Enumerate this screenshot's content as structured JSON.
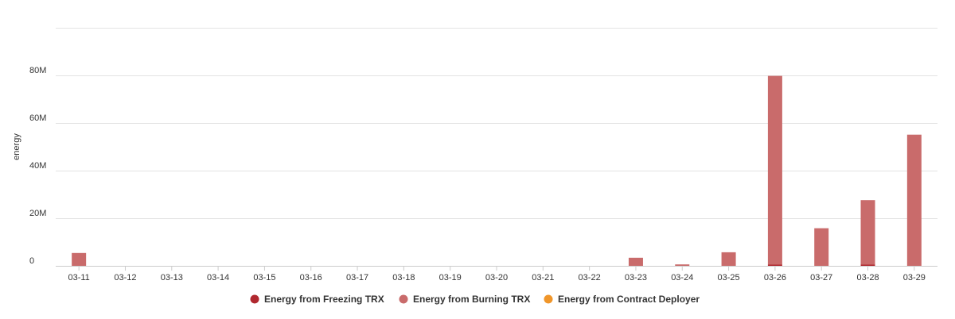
{
  "chart_data": {
    "type": "bar",
    "stacked": true,
    "y_label": "energy",
    "categories": [
      "03-11",
      "03-12",
      "03-13",
      "03-14",
      "03-15",
      "03-16",
      "03-17",
      "03-18",
      "03-19",
      "03-20",
      "03-21",
      "03-22",
      "03-23",
      "03-24",
      "03-25",
      "03-26",
      "03-27",
      "03-28",
      "03-29"
    ],
    "series": [
      {
        "name": "Energy from Freezing TRX",
        "color": "#b0282f",
        "values": [
          0,
          0,
          0,
          0,
          0,
          0,
          0,
          0,
          0,
          0,
          0,
          0,
          0,
          0,
          0,
          500000,
          0,
          500000,
          0
        ]
      },
      {
        "name": "Energy from Burning TRX",
        "color": "#c96b6b",
        "values": [
          5400000,
          0,
          0,
          0,
          0,
          0,
          0,
          0,
          0,
          0,
          0,
          0,
          3400000,
          600000,
          5700000,
          79300000,
          15800000,
          27100000,
          55100000
        ]
      },
      {
        "name": "Energy from Contract Deployer",
        "color": "#f0962a",
        "values": [
          0,
          0,
          0,
          0,
          0,
          0,
          0,
          0,
          0,
          0,
          0,
          0,
          0,
          0,
          0,
          0,
          0,
          0,
          0
        ]
      }
    ],
    "ylim": [
      0,
      100000000
    ],
    "yticks": [
      0,
      {
        "value": 20000000,
        "label": "20M"
      },
      {
        "value": 40000000,
        "label": "40M"
      },
      {
        "value": 60000000,
        "label": "60M"
      },
      {
        "value": 80000000,
        "label": "80M"
      }
    ],
    "grid": true
  }
}
